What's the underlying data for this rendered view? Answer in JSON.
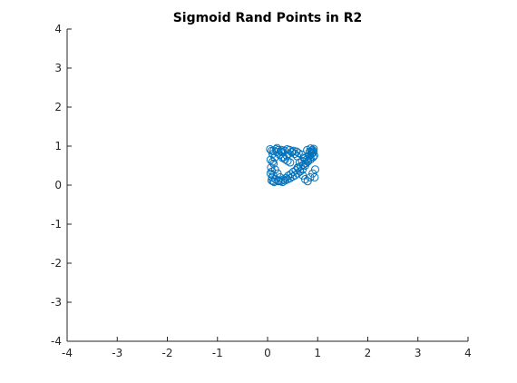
{
  "chart_data": {
    "type": "scatter",
    "title": "Sigmoid Rand Points in R2",
    "xlabel": "",
    "ylabel": "",
    "xlim": [
      -4,
      4
    ],
    "ylim": [
      -4,
      4
    ],
    "xticks": [
      -4,
      -3,
      -2,
      -1,
      0,
      1,
      2,
      3,
      4
    ],
    "yticks": [
      -4,
      -3,
      -2,
      -1,
      0,
      1,
      2,
      3,
      4
    ],
    "grid": false,
    "marker": "circle-open",
    "marker_color": "#0072BD",
    "series": [
      {
        "x": [
          0.05,
          0.08,
          0.1,
          0.06,
          0.12,
          0.15,
          0.2,
          0.25,
          0.22,
          0.3,
          0.35,
          0.4,
          0.45,
          0.5,
          0.55,
          0.6,
          0.65,
          0.7,
          0.75,
          0.8,
          0.85,
          0.88,
          0.9,
          0.92,
          0.87,
          0.83,
          0.78,
          0.72,
          0.68,
          0.62,
          0.58,
          0.52,
          0.48,
          0.42,
          0.38,
          0.32,
          0.28,
          0.18,
          0.14,
          0.1,
          0.07,
          0.09,
          0.11,
          0.16,
          0.21,
          0.26,
          0.31,
          0.36,
          0.41,
          0.46,
          0.51,
          0.56,
          0.61,
          0.66,
          0.71,
          0.76,
          0.81,
          0.86,
          0.91,
          0.93,
          0.89,
          0.84,
          0.79,
          0.74,
          0.69,
          0.64,
          0.59,
          0.54,
          0.49,
          0.44,
          0.39,
          0.34,
          0.29,
          0.24,
          0.19,
          0.13,
          0.08,
          0.06,
          0.94,
          0.95,
          0.9,
          0.85,
          0.8,
          0.75,
          0.7,
          0.65,
          0.6,
          0.12,
          0.17,
          0.22,
          0.27,
          0.09,
          0.11,
          0.86,
          0.88,
          0.92,
          0.3,
          0.35,
          0.4,
          0.45
        ],
        "y": [
          0.92,
          0.88,
          0.8,
          0.65,
          0.55,
          0.4,
          0.3,
          0.2,
          0.1,
          0.08,
          0.12,
          0.15,
          0.18,
          0.22,
          0.25,
          0.3,
          0.35,
          0.4,
          0.5,
          0.6,
          0.7,
          0.8,
          0.9,
          0.93,
          0.85,
          0.75,
          0.65,
          0.7,
          0.78,
          0.82,
          0.86,
          0.88,
          0.84,
          0.8,
          0.76,
          0.72,
          0.9,
          0.85,
          0.7,
          0.6,
          0.45,
          0.35,
          0.25,
          0.15,
          0.12,
          0.1,
          0.14,
          0.18,
          0.24,
          0.28,
          0.34,
          0.38,
          0.44,
          0.48,
          0.52,
          0.56,
          0.62,
          0.66,
          0.72,
          0.76,
          0.82,
          0.86,
          0.9,
          0.68,
          0.62,
          0.58,
          0.74,
          0.8,
          0.86,
          0.9,
          0.92,
          0.88,
          0.84,
          0.78,
          0.95,
          0.08,
          0.12,
          0.3,
          0.2,
          0.4,
          0.3,
          0.2,
          0.1,
          0.15,
          0.25,
          0.35,
          0.45,
          0.88,
          0.92,
          0.9,
          0.86,
          0.2,
          0.1,
          0.94,
          0.88,
          0.85,
          0.7,
          0.66,
          0.62,
          0.58
        ]
      }
    ]
  }
}
